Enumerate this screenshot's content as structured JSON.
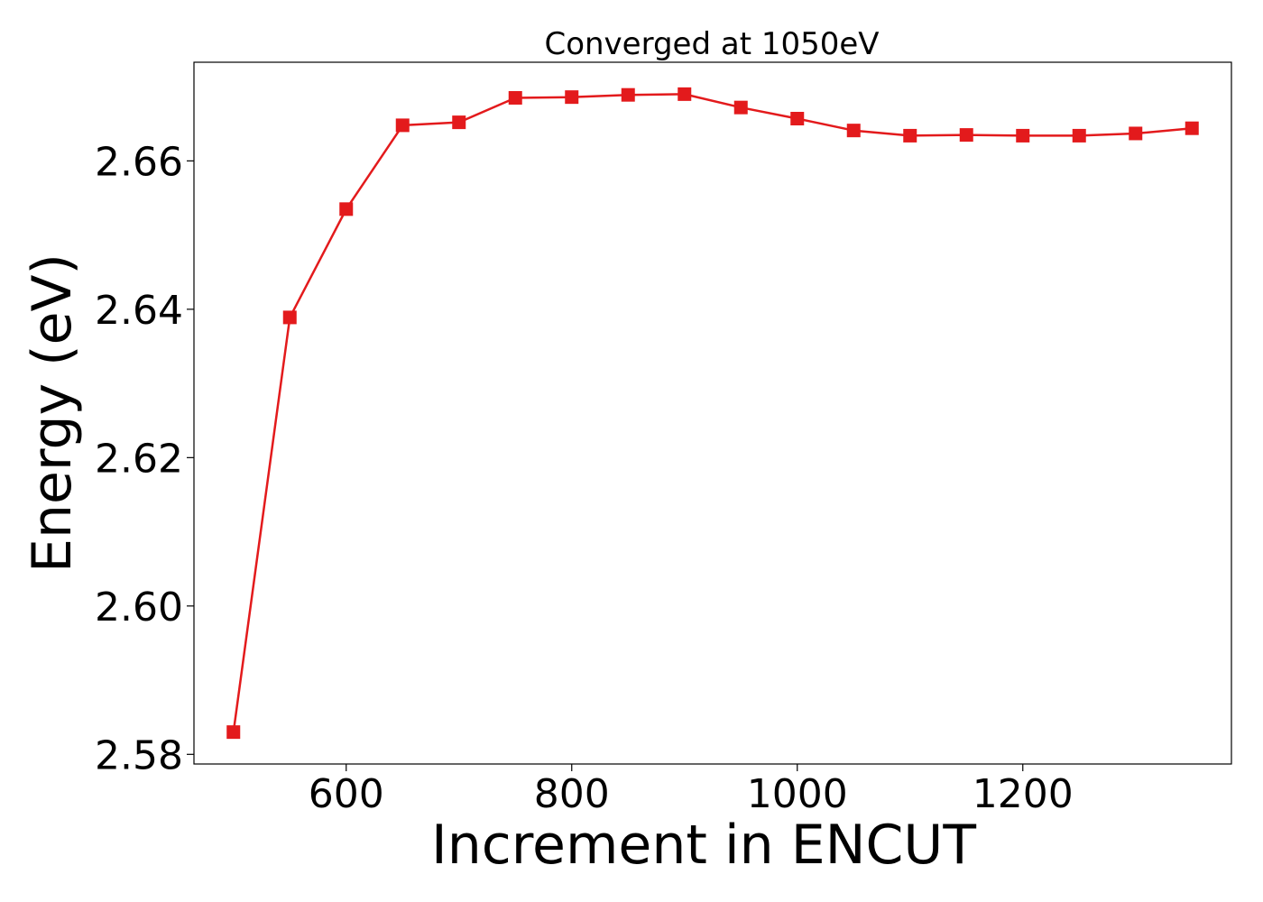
{
  "chart_data": {
    "type": "line",
    "title": "Converged at 1050eV",
    "xlabel": "Increment in ENCUT",
    "ylabel": "Energy (eV)",
    "xlim": [
      465,
      1385
    ],
    "ylim": [
      2.5787,
      2.6733
    ],
    "xticks": [
      600,
      800,
      1000,
      1200
    ],
    "yticks": [
      2.58,
      2.6,
      2.62,
      2.64,
      2.66
    ],
    "xtick_labels": [
      "600",
      "800",
      "1000",
      "1200"
    ],
    "ytick_labels": [
      "2.58",
      "2.60",
      "2.62",
      "2.64",
      "2.66"
    ],
    "grid": false,
    "legend": "none",
    "series": [
      {
        "color": "#e31a1c",
        "marker": "square",
        "x": [
          500,
          550,
          600,
          650,
          700,
          750,
          800,
          850,
          900,
          950,
          1000,
          1050,
          1100,
          1150,
          1200,
          1250,
          1300,
          1350
        ],
        "y": [
          2.583,
          2.6389,
          2.6535,
          2.6648,
          2.6652,
          2.6685,
          2.6686,
          2.6689,
          2.669,
          2.6672,
          2.6657,
          2.6641,
          2.6634,
          2.6635,
          2.6634,
          2.6634,
          2.6637,
          2.6644
        ]
      }
    ]
  }
}
